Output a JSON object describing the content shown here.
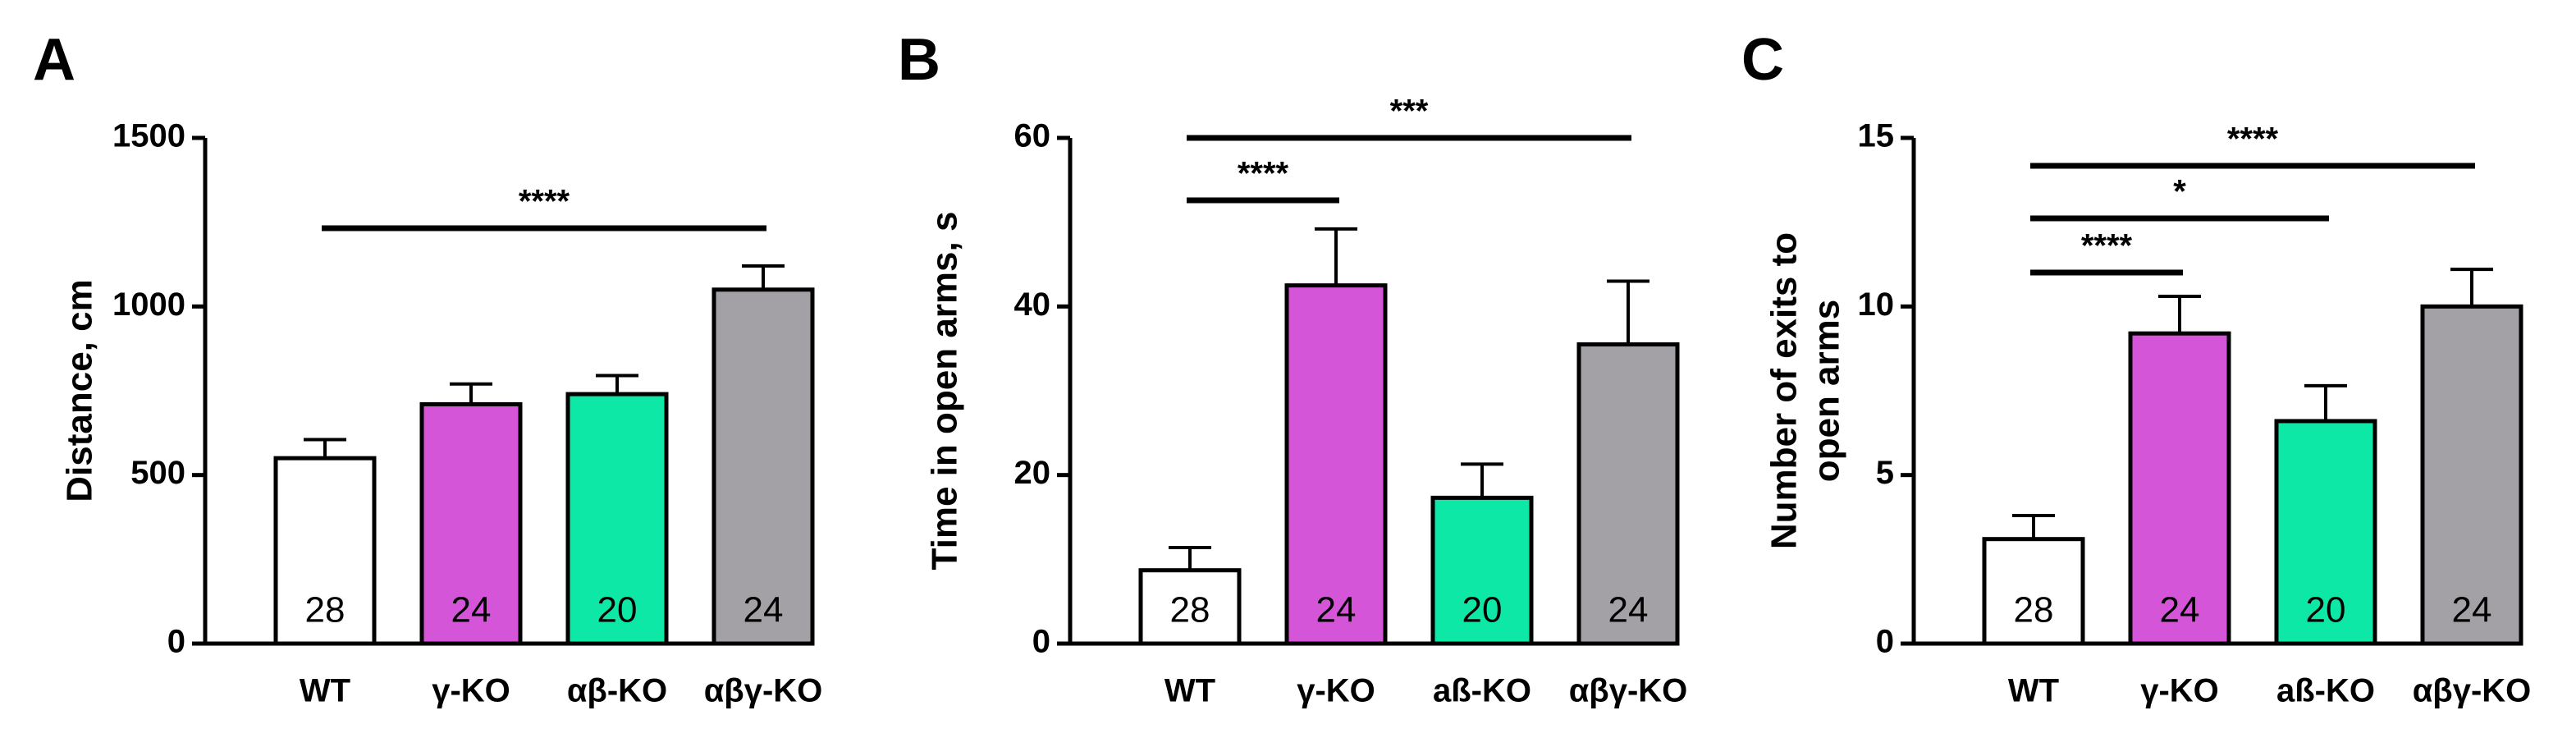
{
  "chart_data": [
    {
      "type": "bar",
      "panel": "A",
      "ylabel": "Distance, cm",
      "categories": [
        "WT",
        "γ-KO",
        "αβ-KO",
        "αβγ-KO"
      ],
      "values": [
        550,
        710,
        740,
        1050
      ],
      "errors": [
        55,
        60,
        55,
        70
      ],
      "n_labels": [
        "28",
        "24",
        "20",
        "24"
      ],
      "colors": [
        "#ffffff",
        "#d455d8",
        "#0de8a6",
        "#a3a1a6"
      ],
      "ylim": [
        0,
        1500
      ],
      "yticks": [
        0,
        500,
        1000,
        1500
      ],
      "comparisons": [
        {
          "groups": [
            "WT",
            "αβγ-KO"
          ],
          "label": "****"
        }
      ]
    },
    {
      "type": "bar",
      "panel": "B",
      "ylabel": "Time in open arms, s",
      "categories": [
        "WT",
        "γ-KO",
        "aß-KO",
        "αβγ-KO"
      ],
      "values": [
        8.7,
        42.5,
        17.3,
        35.5
      ],
      "errors": [
        2.7,
        6.7,
        4,
        7.5
      ],
      "n_labels": [
        "28",
        "24",
        "20",
        "24"
      ],
      "colors": [
        "#ffffff",
        "#d455d8",
        "#0de8a6",
        "#a3a1a6"
      ],
      "ylim": [
        0,
        60
      ],
      "yticks": [
        0,
        20,
        40,
        60
      ],
      "comparisons": [
        {
          "groups": [
            "WT",
            "γ-KO"
          ],
          "label": "****"
        },
        {
          "groups": [
            "WT",
            "αβγ-KO"
          ],
          "label": "***"
        }
      ]
    },
    {
      "type": "bar",
      "panel": "C",
      "ylabel": [
        "Number of exits to",
        "open arms"
      ],
      "categories": [
        "WT",
        "γ-KO",
        "aß-KO",
        "αβγ-KO"
      ],
      "values": [
        3.1,
        9.2,
        6.6,
        10.0
      ],
      "errors": [
        0.7,
        1.1,
        1.05,
        1.1
      ],
      "n_labels": [
        "28",
        "24",
        "20",
        "24"
      ],
      "colors": [
        "#ffffff",
        "#d455d8",
        "#0de8a6",
        "#a3a1a6"
      ],
      "ylim": [
        0,
        15
      ],
      "yticks": [
        0,
        5,
        10,
        15
      ],
      "comparisons": [
        {
          "groups": [
            "WT",
            "γ-KO"
          ],
          "label": "****"
        },
        {
          "groups": [
            "WT",
            "aß-KO"
          ],
          "label": "*"
        },
        {
          "groups": [
            "WT",
            "αβγ-KO"
          ],
          "label": "****"
        }
      ]
    }
  ]
}
